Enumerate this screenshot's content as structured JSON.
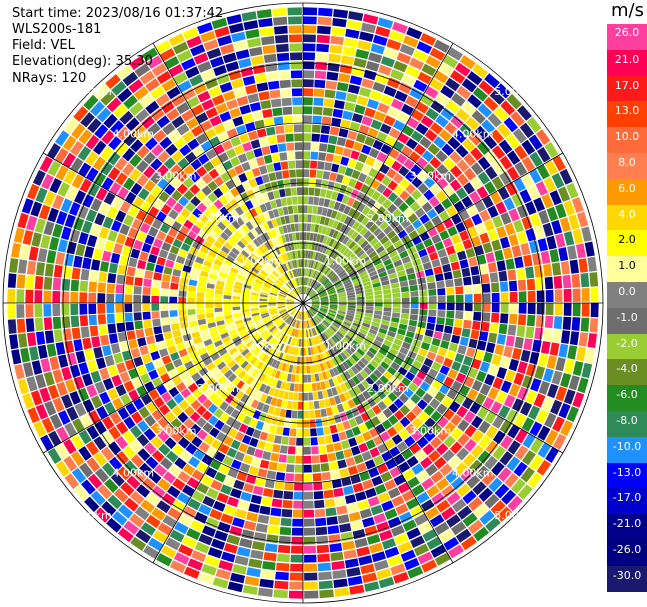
{
  "info": {
    "start_time": "Start time: 2023/08/16 01:37:42",
    "site": "WLS200s-181",
    "field": "Field: VEL",
    "elevation": "Elevation(deg): 35.30",
    "nrays": "NRays: 120"
  },
  "chart_data": {
    "type": "heatmap",
    "projection": "polar-ppi",
    "title": "",
    "colorbar_unit": "m/s",
    "colorbar_ticks": [
      "26.0",
      "21.0",
      "17.0",
      "13.0",
      "10.0",
      "8.0",
      "6.0",
      "4.0",
      "2.0",
      "1.0",
      "0.0",
      "-1.0",
      "-2.0",
      "-4.0",
      "-6.0",
      "-8.0",
      "-10.0",
      "-13.0",
      "-17.0",
      "-21.0",
      "-26.0",
      "-30.0"
    ],
    "colorbar_colors": [
      "#ff3fa0",
      "#ff0055",
      "#ff1a1a",
      "#ff4000",
      "#ff6a3a",
      "#ff7f50",
      "#ff9900",
      "#ffd700",
      "#ffff00",
      "#ffff99",
      "#808080",
      "#6e6e6e",
      "#9acd32",
      "#6b8e23",
      "#228b22",
      "#2e8b57",
      "#1e90ff",
      "#0000ff",
      "#0000cd",
      "#00008b",
      "#000080",
      "#191970"
    ],
    "range_rings": [
      {
        "label": "1.00km",
        "km": 1
      },
      {
        "label": "2.00km",
        "km": 2
      },
      {
        "label": "3.00km",
        "km": 3
      },
      {
        "label": "4.00km",
        "km": 4
      },
      {
        "label": "5.00km",
        "km": 5
      }
    ],
    "spokes_deg": [
      0,
      30,
      60,
      90,
      120,
      150,
      180,
      210,
      240,
      270,
      300,
      330
    ],
    "nrays": 120,
    "max_range_km": 5.0
  }
}
